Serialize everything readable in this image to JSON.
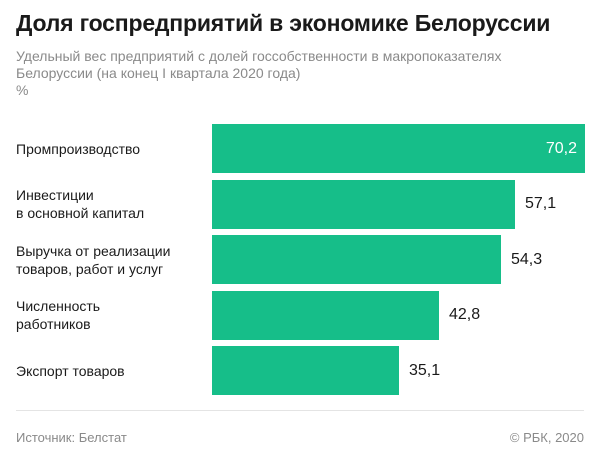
{
  "header": {
    "title": "Доля госпредприятий в экономике Белоруссии",
    "subtitle": "Удельный вес предприятий с долей госсобственности в макропоказателях Белоруссии (на конец I квартала 2020 года)",
    "unit": "%"
  },
  "footer": {
    "source": "Источник: Белстат",
    "copyright": "© РБК, 2020"
  },
  "colors": {
    "bar": "#16be89",
    "value_inside": "#ffffff",
    "value_outside": "#1a1a1a"
  },
  "chart_data": {
    "type": "bar",
    "orientation": "horizontal",
    "title": "Доля госпредприятий в экономике Белоруссии",
    "ylabel": "%",
    "xlim": [
      0,
      70.2
    ],
    "grid": false,
    "categories": [
      [
        "Промпроизводство"
      ],
      [
        "Инвестиции",
        "в основной капитал"
      ],
      [
        "Выручка от реализации",
        "товаров, работ и услуг"
      ],
      [
        "Численность",
        "работников"
      ],
      [
        "Экспорт товаров"
      ]
    ],
    "values": [
      70.2,
      57.1,
      54.3,
      42.8,
      35.1
    ],
    "value_labels": [
      "70,2",
      "57,1",
      "54,3",
      "42,8",
      "35,1"
    ]
  }
}
